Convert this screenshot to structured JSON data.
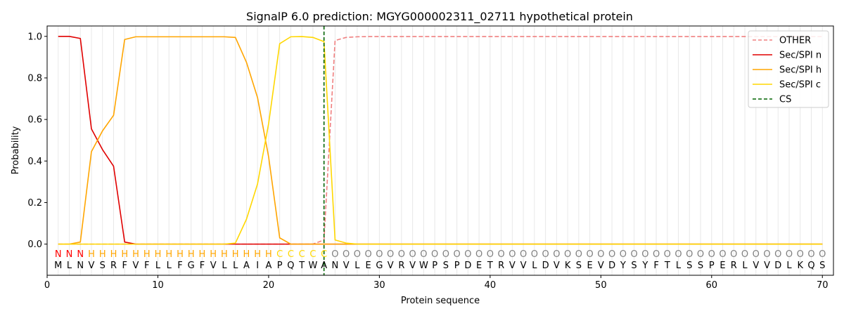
{
  "chart_data": {
    "type": "line",
    "title": "SignalP 6.0 prediction: MGYG000002311_02711 hypothetical protein",
    "xlabel": "Protein sequence",
    "ylabel": "Probability",
    "xlim": [
      0,
      71
    ],
    "ylim": [
      -0.15,
      1.05
    ],
    "xticks": [
      0,
      10,
      20,
      30,
      40,
      50,
      60,
      70
    ],
    "yticks": [
      0.0,
      0.2,
      0.4,
      0.6,
      0.8,
      1.0
    ],
    "x_tick_labels": [
      "0",
      "10",
      "20",
      "30",
      "40",
      "50",
      "60",
      "70"
    ],
    "y_tick_labels": [
      "0.0",
      "0.2",
      "0.4",
      "0.6",
      "0.8",
      "1.0"
    ],
    "grid": "vertical",
    "legend_position": "top-right",
    "sequence": [
      "M",
      "L",
      "N",
      "V",
      "S",
      "R",
      "F",
      "V",
      "F",
      "L",
      "L",
      "F",
      "G",
      "F",
      "V",
      "L",
      "L",
      "A",
      "I",
      "A",
      "P",
      "Q",
      "T",
      "W",
      "A",
      "N",
      "V",
      "L",
      "E",
      "G",
      "V",
      "R",
      "V",
      "W",
      "P",
      "S",
      "P",
      "D",
      "E",
      "T",
      "R",
      "V",
      "V",
      "L",
      "D",
      "V",
      "K",
      "S",
      "E",
      "V",
      "D",
      "Y",
      "S",
      "Y",
      "F",
      "T",
      "L",
      "S",
      "S",
      "P",
      "E",
      "R",
      "L",
      "V",
      "V",
      "D",
      "L",
      "K",
      "Q",
      "S"
    ],
    "labels": [
      "N",
      "N",
      "N",
      "H",
      "H",
      "H",
      "H",
      "H",
      "H",
      "H",
      "H",
      "H",
      "H",
      "H",
      "H",
      "H",
      "H",
      "H",
      "H",
      "H",
      "C",
      "C",
      "C",
      "C",
      "C",
      "O",
      "O",
      "O",
      "O",
      "O",
      "O",
      "O",
      "O",
      "O",
      "O",
      "O",
      "O",
      "O",
      "O",
      "O",
      "O",
      "O",
      "O",
      "O",
      "O",
      "O",
      "O",
      "O",
      "O",
      "O",
      "O",
      "O",
      "O",
      "O",
      "O",
      "O",
      "O",
      "O",
      "O",
      "O",
      "O",
      "O",
      "O",
      "O",
      "O",
      "O",
      "O",
      "O",
      "O",
      "O"
    ],
    "label_colors": {
      "N": "#ff0000",
      "H": "#ffa500",
      "C": "#ffd700",
      "O": "#808080"
    },
    "cs_position": 25,
    "series": [
      {
        "name": "OTHER",
        "color": "#f08080",
        "dash": "dashed",
        "values": [
          0,
          0,
          0,
          0,
          0,
          0,
          0,
          0,
          0,
          0,
          0,
          0,
          0,
          0,
          0,
          0,
          0,
          0,
          0,
          0,
          0,
          0,
          0,
          0,
          0.02,
          0.98,
          0.995,
          0.998,
          0.999,
          0.999,
          0.999,
          0.999,
          0.999,
          0.999,
          0.999,
          0.999,
          0.999,
          0.999,
          0.999,
          0.999,
          0.999,
          0.999,
          0.999,
          0.999,
          0.999,
          0.999,
          0.999,
          0.999,
          0.999,
          0.999,
          0.999,
          0.999,
          0.999,
          0.999,
          0.999,
          0.999,
          0.999,
          0.999,
          0.999,
          0.999,
          0.999,
          0.999,
          0.999,
          0.999,
          0.999,
          0.999,
          0.999,
          0.999,
          0.999,
          0.999
        ]
      },
      {
        "name": "Sec/SPI n",
        "color": "#e00000",
        "dash": "solid",
        "values": [
          1.0,
          1.0,
          0.99,
          0.555,
          0.455,
          0.375,
          0.01,
          0,
          0,
          0,
          0,
          0,
          0,
          0,
          0,
          0,
          0,
          0,
          0,
          0,
          0,
          0,
          0,
          0,
          0,
          0,
          0,
          0,
          0,
          0,
          0,
          0,
          0,
          0,
          0,
          0,
          0,
          0,
          0,
          0,
          0,
          0,
          0,
          0,
          0,
          0,
          0,
          0,
          0,
          0,
          0,
          0,
          0,
          0,
          0,
          0,
          0,
          0,
          0,
          0,
          0,
          0,
          0,
          0,
          0,
          0,
          0,
          0,
          0,
          0
        ]
      },
      {
        "name": "Sec/SPI h",
        "color": "#ffa500",
        "dash": "solid",
        "values": [
          0,
          0,
          0.01,
          0.445,
          0.545,
          0.62,
          0.985,
          0.998,
          0.998,
          0.998,
          0.998,
          0.998,
          0.998,
          0.998,
          0.998,
          0.998,
          0.995,
          0.875,
          0.705,
          0.42,
          0.03,
          0,
          0,
          0,
          0,
          0,
          0,
          0,
          0,
          0,
          0,
          0,
          0,
          0,
          0,
          0,
          0,
          0,
          0,
          0,
          0,
          0,
          0,
          0,
          0,
          0,
          0,
          0,
          0,
          0,
          0,
          0,
          0,
          0,
          0,
          0,
          0,
          0,
          0,
          0,
          0,
          0,
          0,
          0,
          0,
          0,
          0,
          0,
          0,
          0
        ]
      },
      {
        "name": "Sec/SPI c",
        "color": "#ffd700",
        "dash": "solid",
        "values": [
          0,
          0,
          0,
          0,
          0,
          0,
          0,
          0,
          0,
          0,
          0,
          0,
          0,
          0,
          0,
          0,
          0.005,
          0.12,
          0.29,
          0.58,
          0.965,
          0.998,
          0.999,
          0.995,
          0.975,
          0.02,
          0.005,
          0,
          0,
          0,
          0,
          0,
          0,
          0,
          0,
          0,
          0,
          0,
          0,
          0,
          0,
          0,
          0,
          0,
          0,
          0,
          0,
          0,
          0,
          0,
          0,
          0,
          0,
          0,
          0,
          0,
          0,
          0,
          0,
          0,
          0,
          0,
          0,
          0,
          0,
          0,
          0,
          0,
          0,
          0
        ]
      }
    ],
    "legend": [
      {
        "name": "OTHER",
        "color": "#f08080",
        "dash": "dashed"
      },
      {
        "name": "Sec/SPI n",
        "color": "#e00000",
        "dash": "solid"
      },
      {
        "name": "Sec/SPI h",
        "color": "#ffa500",
        "dash": "solid"
      },
      {
        "name": "Sec/SPI c",
        "color": "#ffd700",
        "dash": "solid"
      },
      {
        "name": "CS",
        "color": "#006400",
        "dash": "dashed"
      }
    ]
  }
}
